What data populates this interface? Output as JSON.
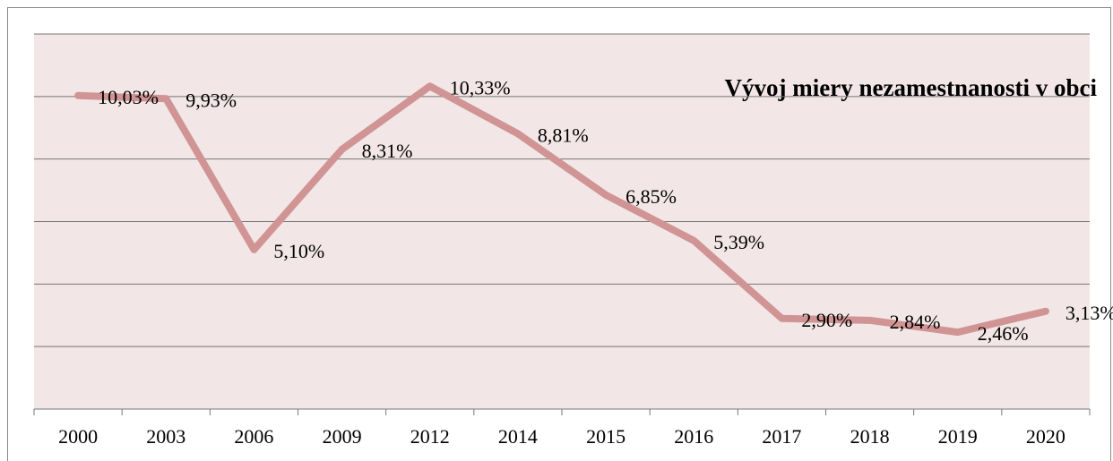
{
  "chart_data": {
    "type": "line",
    "title": "Vývoj miery nezamestnanosti v obci",
    "categories": [
      "2000",
      "2003",
      "2006",
      "2009",
      "2012",
      "2014",
      "2015",
      "2016",
      "2017",
      "2018",
      "2019",
      "2020"
    ],
    "series": [
      {
        "color": "#d09494",
        "values": [
          10.03,
          9.93,
          5.1,
          8.31,
          10.33,
          8.81,
          6.85,
          5.39,
          2.9,
          2.84,
          2.46,
          3.13
        ],
        "value_labels": [
          "10,03%",
          "9,93%",
          "5,10%",
          "8,31%",
          "10,33%",
          "8,81%",
          "6,85%",
          "5,39%",
          "2,90%",
          "2,84%",
          "2,46%",
          "3,13%"
        ]
      }
    ],
    "ylim": [
      0,
      12
    ],
    "yticks": [
      0,
      2,
      4,
      6,
      8,
      10,
      12
    ],
    "ytick_labels": false,
    "grid": true,
    "plot_background": "#f2e6e6"
  }
}
